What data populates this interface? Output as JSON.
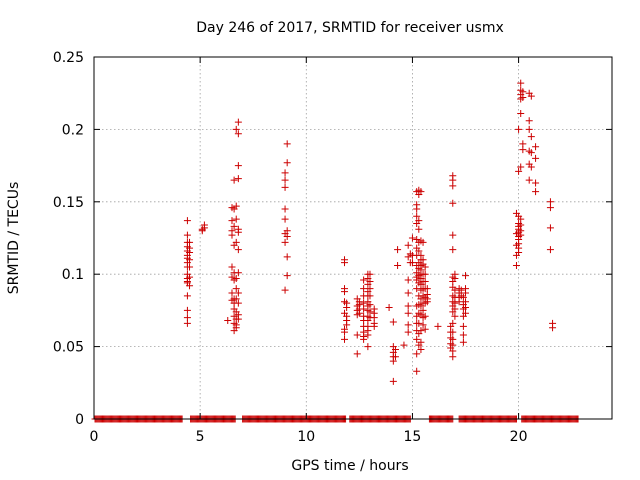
{
  "chart_data": {
    "type": "scatter",
    "title": "Day 246 of 2017, SRMTID for receiver usmx",
    "xlabel": "GPS time / hours",
    "ylabel": "SRMTID / TECUs",
    "xlim": [
      0,
      24.4
    ],
    "ylim": [
      0,
      0.25
    ],
    "x_ticks": [
      0,
      5,
      10,
      15,
      20
    ],
    "x_tick_labels": [
      "0",
      "5",
      "10",
      "15",
      "20"
    ],
    "y_ticks": [
      0,
      0.05,
      0.1,
      0.15,
      0.2,
      0.25
    ],
    "y_tick_labels": [
      "0",
      "0.05",
      "0.1",
      "0.15",
      "0.2",
      "0.25"
    ],
    "grid": true,
    "marker": "plus",
    "color": "#cc0000",
    "zero_segments": [
      [
        0.05,
        4.15
      ],
      [
        4.55,
        6.65
      ],
      [
        7.0,
        11.85
      ],
      [
        12.05,
        14.9
      ],
      [
        15.8,
        16.9
      ],
      [
        17.2,
        19.9
      ],
      [
        20.15,
        22.8
      ]
    ],
    "zero_step": 0.05,
    "series": [
      {
        "name": "4.4h",
        "x": 4.4,
        "y": [
          0.137,
          0.127,
          0.122,
          0.119,
          0.116,
          0.113,
          0.111,
          0.108,
          0.105,
          0.1,
          0.097,
          0.095,
          0.094,
          0.085,
          0.075,
          0.07,
          0.066
        ]
      },
      {
        "name": "4.5h",
        "x": 4.5,
        "y": [
          0.122,
          0.118,
          0.115,
          0.11,
          0.105,
          0.098,
          0.092
        ]
      },
      {
        "name": "5.1h",
        "x": 5.1,
        "y": [
          0.131,
          0.13
        ]
      },
      {
        "name": "5.2h",
        "x": 5.2,
        "y": [
          0.134,
          0.132
        ]
      },
      {
        "name": "6.3h",
        "x": 6.3,
        "y": [
          0.068
        ]
      },
      {
        "name": "6.5h",
        "x": 6.5,
        "y": [
          0.146,
          0.137,
          0.13,
          0.127,
          0.105,
          0.098,
          0.087,
          0.082
        ]
      },
      {
        "name": "6.6h",
        "x": 6.6,
        "y": [
          0.165,
          0.145,
          0.133,
          0.12,
          0.101,
          0.096,
          0.083,
          0.08,
          0.076,
          0.071,
          0.066,
          0.061
        ]
      },
      {
        "name": "6.7h",
        "x": 6.7,
        "y": [
          0.2,
          0.147,
          0.138,
          0.122,
          0.097,
          0.09,
          0.083,
          0.074,
          0.069,
          0.065,
          0.063
        ]
      },
      {
        "name": "6.8h",
        "x": 6.8,
        "y": [
          0.205,
          0.197,
          0.175,
          0.166,
          0.131,
          0.129,
          0.117,
          0.101,
          0.087,
          0.08,
          0.072,
          0.069
        ]
      },
      {
        "name": "9.0h",
        "x": 9.0,
        "y": [
          0.17,
          0.165,
          0.16,
          0.145,
          0.138,
          0.128,
          0.122,
          0.089
        ]
      },
      {
        "name": "9.1h",
        "x": 9.1,
        "y": [
          0.19,
          0.177,
          0.13,
          0.126,
          0.112,
          0.099
        ]
      },
      {
        "name": "11.8h",
        "x": 11.8,
        "y": [
          0.11,
          0.108,
          0.09,
          0.088,
          0.081,
          0.073,
          0.062,
          0.06,
          0.055
        ]
      },
      {
        "name": "11.9h",
        "x": 11.9,
        "y": [
          0.08,
          0.077,
          0.071,
          0.068,
          0.065
        ]
      },
      {
        "name": "12.4h",
        "x": 12.4,
        "y": [
          0.083,
          0.078,
          0.075,
          0.072,
          0.058,
          0.045
        ]
      },
      {
        "name": "12.5h",
        "x": 12.5,
        "y": [
          0.081,
          0.079,
          0.076,
          0.073
        ]
      },
      {
        "name": "12.7h",
        "x": 12.7,
        "y": [
          0.096,
          0.09,
          0.085,
          0.08,
          0.076,
          0.071,
          0.068,
          0.064,
          0.06,
          0.057,
          0.055
        ]
      },
      {
        "name": "12.9h",
        "x": 12.9,
        "y": [
          0.1,
          0.097,
          0.093,
          0.088,
          0.085,
          0.081,
          0.078,
          0.075,
          0.071,
          0.068,
          0.064,
          0.061,
          0.058,
          0.05
        ]
      },
      {
        "name": "13.0h",
        "x": 13.0,
        "y": [
          0.1,
          0.095,
          0.09,
          0.085,
          0.079,
          0.074,
          0.07
        ]
      },
      {
        "name": "13.2h",
        "x": 13.2,
        "y": [
          0.076,
          0.073,
          0.07,
          0.066,
          0.064
        ]
      },
      {
        "name": "13.9h",
        "x": 13.9,
        "y": [
          0.077
        ]
      },
      {
        "name": "14.1h",
        "x": 14.1,
        "y": [
          0.067,
          0.05,
          0.046,
          0.043,
          0.04,
          0.026
        ]
      },
      {
        "name": "14.2h",
        "x": 14.2,
        "y": [
          0.048,
          0.043
        ]
      },
      {
        "name": "14.3h",
        "x": 14.3,
        "y": [
          0.117,
          0.106
        ]
      },
      {
        "name": "14.6h",
        "x": 14.6,
        "y": [
          0.051
        ]
      },
      {
        "name": "14.8h",
        "x": 14.8,
        "y": [
          0.12,
          0.112,
          0.096,
          0.087,
          0.078,
          0.073,
          0.065,
          0.06
        ]
      },
      {
        "name": "14.9h",
        "x": 14.9,
        "y": [
          0.114,
          0.108
        ]
      },
      {
        "name": "15.0h",
        "x": 15.0,
        "y": [
          0.125,
          0.113,
          0.108
        ]
      },
      {
        "name": "15.2h",
        "x": 15.2,
        "y": [
          0.157,
          0.148,
          0.145,
          0.14,
          0.135,
          0.124,
          0.118,
          0.113,
          0.106,
          0.101,
          0.098,
          0.096,
          0.09,
          0.078,
          0.071,
          0.066,
          0.061,
          0.055,
          0.045,
          0.033
        ]
      },
      {
        "name": "15.3h",
        "x": 15.3,
        "y": [
          0.158,
          0.155,
          0.137,
          0.131,
          0.122,
          0.116,
          0.108,
          0.104,
          0.099,
          0.094,
          0.085,
          0.079,
          0.073,
          0.066,
          0.059,
          0.051
        ]
      },
      {
        "name": "15.4h",
        "x": 15.4,
        "y": [
          0.157,
          0.123,
          0.113,
          0.11,
          0.106,
          0.103,
          0.1,
          0.097,
          0.093,
          0.089,
          0.083,
          0.078,
          0.072,
          0.061,
          0.053,
          0.048
        ]
      },
      {
        "name": "15.5h",
        "x": 15.5,
        "y": [
          0.122,
          0.11,
          0.107,
          0.1,
          0.095,
          0.09,
          0.085,
          0.08,
          0.075,
          0.07,
          0.065
        ]
      },
      {
        "name": "15.6h",
        "x": 15.6,
        "y": [
          0.105,
          0.1,
          0.095,
          0.09,
          0.084,
          0.08,
          0.071,
          0.062
        ]
      },
      {
        "name": "15.7h",
        "x": 15.7,
        "y": [
          0.09,
          0.086,
          0.083,
          0.081
        ]
      },
      {
        "name": "16.2h",
        "x": 16.2,
        "y": [
          0.064
        ]
      },
      {
        "name": "16.8h",
        "x": 16.8,
        "y": [
          0.064,
          0.06,
          0.056,
          0.052,
          0.049
        ]
      },
      {
        "name": "16.9h",
        "x": 16.9,
        "y": [
          0.168,
          0.165,
          0.161,
          0.149,
          0.127,
          0.117,
          0.098,
          0.095,
          0.091,
          0.085,
          0.081,
          0.078,
          0.074,
          0.066,
          0.06,
          0.055,
          0.051,
          0.047,
          0.043
        ]
      },
      {
        "name": "17.0h",
        "x": 17.0,
        "y": [
          0.1,
          0.097,
          0.089,
          0.084,
          0.08,
          0.076,
          0.071
        ]
      },
      {
        "name": "17.2h",
        "x": 17.2,
        "y": [
          0.09,
          0.087,
          0.084,
          0.081
        ]
      },
      {
        "name": "17.3h",
        "x": 17.3,
        "y": [
          0.089,
          0.085
        ]
      },
      {
        "name": "17.4h",
        "x": 17.4,
        "y": [
          0.084,
          0.079,
          0.076,
          0.071,
          0.064,
          0.058,
          0.053
        ]
      },
      {
        "name": "17.5h",
        "x": 17.5,
        "y": [
          0.099,
          0.09,
          0.087,
          0.081,
          0.077,
          0.073
        ]
      },
      {
        "name": "19.9h",
        "x": 19.9,
        "y": [
          0.142,
          0.128,
          0.12,
          0.113,
          0.106
        ]
      },
      {
        "name": "20.0h",
        "x": 20.0,
        "y": [
          0.2,
          0.171,
          0.14,
          0.135,
          0.133,
          0.131,
          0.129,
          0.126,
          0.124,
          0.121,
          0.118,
          0.115
        ]
      },
      {
        "name": "20.1h",
        "x": 20.1,
        "y": [
          0.232,
          0.227,
          0.224,
          0.221,
          0.211,
          0.174,
          0.138,
          0.134,
          0.13,
          0.127
        ]
      },
      {
        "name": "20.2h",
        "x": 20.2,
        "y": [
          0.226,
          0.222,
          0.19,
          0.186
        ]
      },
      {
        "name": "20.5h",
        "x": 20.5,
        "y": [
          0.225,
          0.206,
          0.2,
          0.185,
          0.176,
          0.165
        ]
      },
      {
        "name": "20.6h",
        "x": 20.6,
        "y": [
          0.223,
          0.195,
          0.184,
          0.174
        ]
      },
      {
        "name": "20.8h",
        "x": 20.8,
        "y": [
          0.188,
          0.18,
          0.163,
          0.157
        ]
      },
      {
        "name": "21.5h",
        "x": 21.5,
        "y": [
          0.15,
          0.146,
          0.132,
          0.117
        ]
      },
      {
        "name": "21.6h",
        "x": 21.6,
        "y": [
          0.066,
          0.063
        ]
      }
    ]
  }
}
